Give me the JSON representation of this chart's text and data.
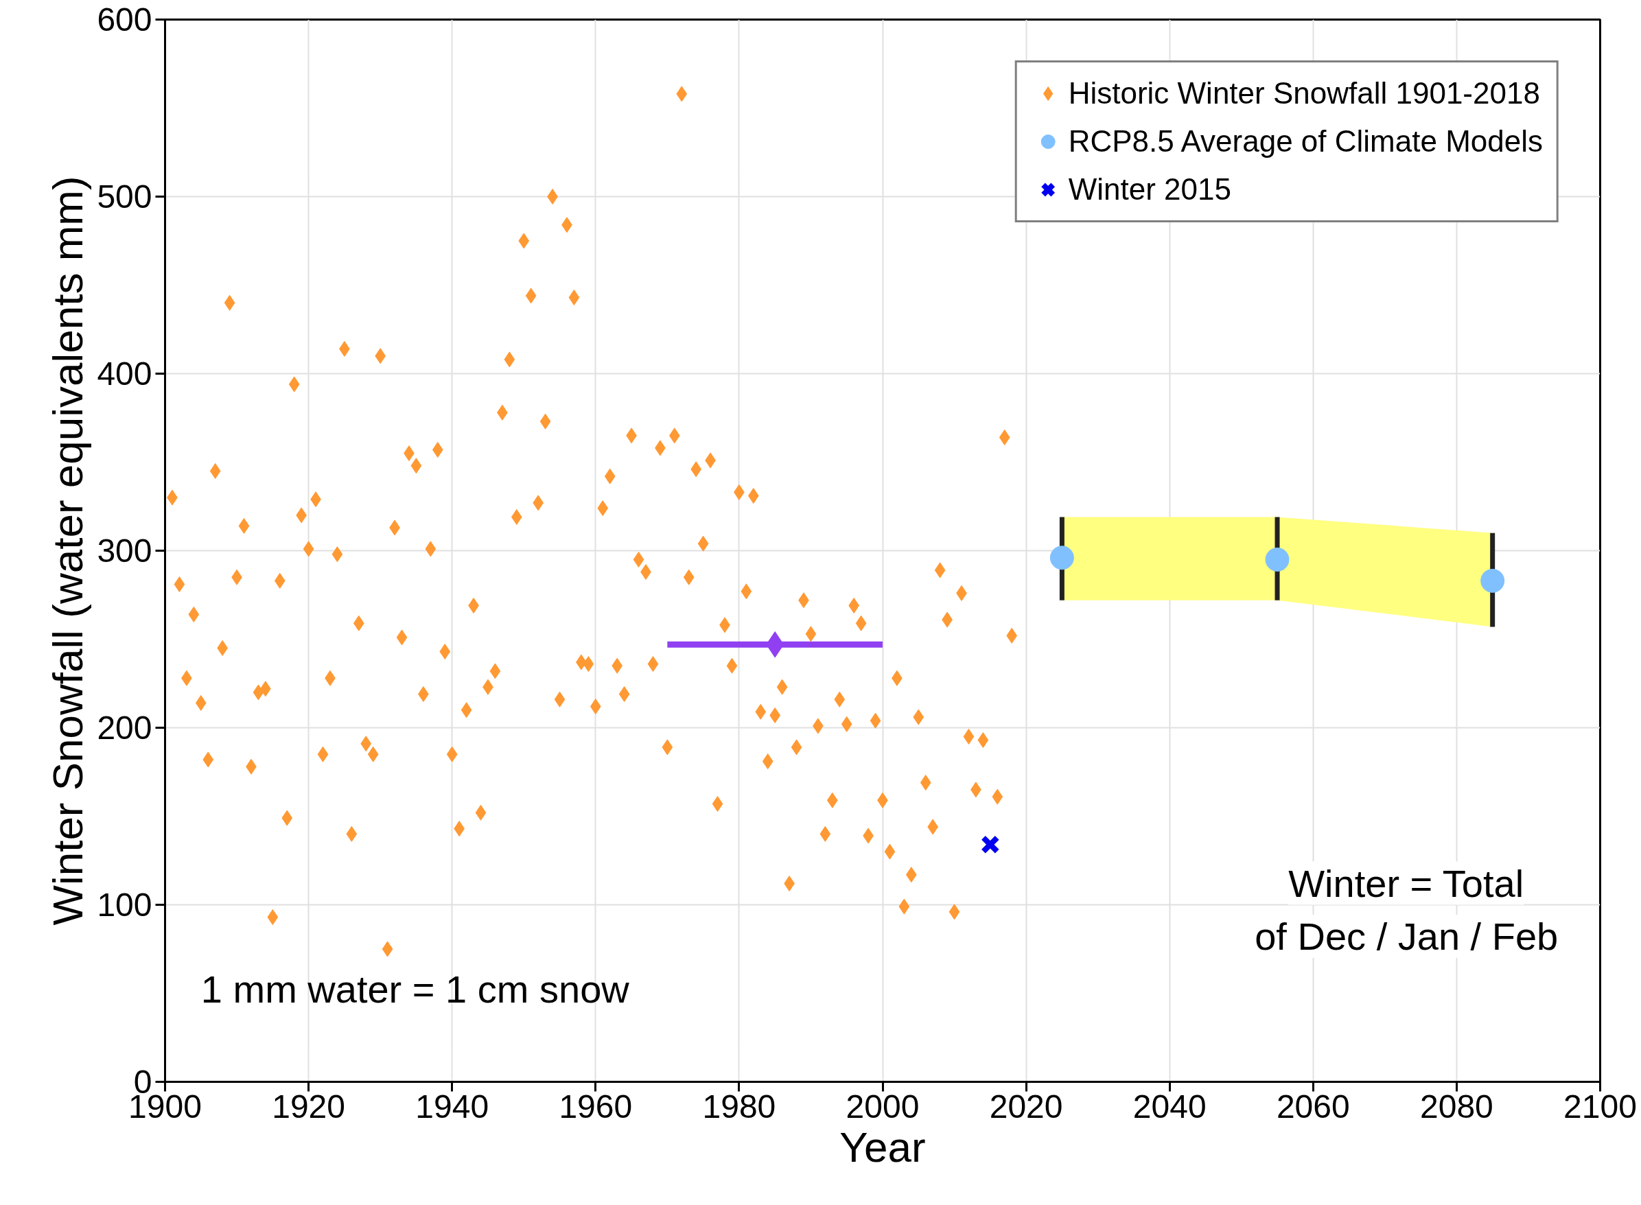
{
  "chart_data": {
    "type": "scatter",
    "xlabel": "Year",
    "ylabel": "Winter Snowfall (water equivalents mm)",
    "xlim": [
      1900,
      2100
    ],
    "xticks": [
      1900,
      1920,
      1940,
      1960,
      1980,
      2000,
      2020,
      2040,
      2060,
      2080,
      2100
    ],
    "ylim": [
      0,
      600
    ],
    "yticks": [
      0,
      100,
      200,
      300,
      400,
      500,
      600
    ],
    "grid": true,
    "legend": "top right",
    "series": [
      {
        "name": "Historic Winter Snowfall 1901-2018",
        "marker": "diamond",
        "color": "#ff9933",
        "x": [
          1901,
          1902,
          1903,
          1904,
          1905,
          1906,
          1907,
          1908,
          1909,
          1910,
          1911,
          1912,
          1913,
          1914,
          1915,
          1916,
          1917,
          1918,
          1919,
          1920,
          1921,
          1922,
          1923,
          1924,
          1925,
          1926,
          1927,
          1928,
          1929,
          1930,
          1931,
          1932,
          1933,
          1934,
          1935,
          1936,
          1937,
          1938,
          1939,
          1940,
          1941,
          1942,
          1943,
          1944,
          1945,
          1946,
          1947,
          1948,
          1949,
          1950,
          1951,
          1952,
          1953,
          1954,
          1955,
          1956,
          1957,
          1958,
          1959,
          1960,
          1961,
          1962,
          1963,
          1964,
          1965,
          1966,
          1967,
          1968,
          1969,
          1970,
          1971,
          1972,
          1973,
          1974,
          1975,
          1976,
          1977,
          1978,
          1979,
          1980,
          1981,
          1982,
          1983,
          1984,
          1985,
          1986,
          1987,
          1988,
          1989,
          1990,
          1991,
          1992,
          1993,
          1994,
          1995,
          1996,
          1997,
          1998,
          1999,
          2000,
          2001,
          2002,
          2003,
          2004,
          2005,
          2006,
          2007,
          2008,
          2009,
          2010,
          2011,
          2012,
          2013,
          2014,
          2015,
          2016,
          2017,
          2018
        ],
        "values": [
          330,
          281,
          228,
          264,
          214,
          182,
          345,
          245,
          440,
          285,
          314,
          178,
          220,
          222,
          93,
          283,
          149,
          394,
          320,
          301,
          329,
          185,
          228,
          298,
          414,
          140,
          259,
          191,
          185,
          410,
          75,
          313,
          251,
          355,
          348,
          219,
          301,
          357,
          243,
          185,
          143,
          210,
          269,
          152,
          223,
          232,
          378,
          408,
          319,
          475,
          444,
          327,
          373,
          500,
          216,
          484,
          443,
          237,
          236,
          212,
          324,
          342,
          235,
          219,
          365,
          295,
          288,
          236,
          358,
          189,
          365,
          558,
          285,
          346,
          304,
          351,
          157,
          258,
          235,
          333,
          277,
          331,
          209,
          181,
          207,
          223,
          112,
          189,
          272,
          253,
          201,
          140,
          159,
          216,
          202,
          269,
          259,
          139,
          204,
          159,
          130,
          228,
          99,
          117,
          206,
          169,
          144,
          289,
          261,
          96,
          276,
          195,
          165,
          193,
          null,
          161,
          364,
          252
        ]
      },
      {
        "type": "line",
        "color": "#9040f0",
        "x": [
          1970,
          2000
        ],
        "values": [
          247,
          247
        ]
      },
      {
        "marker": "diamond",
        "color": "#9040f0",
        "x": [
          1985
        ],
        "values": [
          247
        ]
      },
      {
        "name": "RCP8.5 Average of Climate Models",
        "marker": "circle",
        "color": "#80c0ff",
        "x": [
          2025,
          2055,
          2085
        ],
        "values": [
          296,
          295,
          283
        ],
        "errors": [
          [
            272,
            319
          ],
          [
            272,
            319
          ],
          [
            257,
            310
          ]
        ],
        "lower": [
          272,
          272,
          257
        ],
        "upper": [
          319,
          319,
          310
        ]
      },
      {
        "name": "Winter 2015",
        "marker": "cross",
        "color": "#0000ee",
        "x": [
          2015
        ],
        "values": [
          134
        ]
      }
    ],
    "annotations": [
      "1 mm water = 1 cm snow",
      "Winter = Total\nof Dec / Jan / Feb"
    ]
  }
}
